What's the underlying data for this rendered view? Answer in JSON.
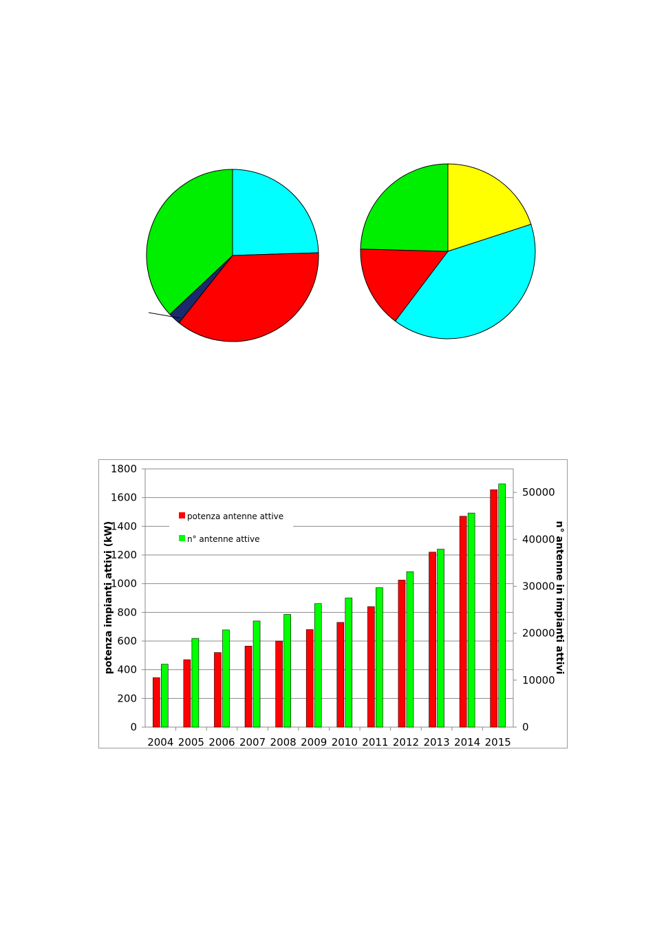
{
  "chart_data": [
    {
      "type": "pie",
      "title": "",
      "slices": [
        {
          "value": 24.5,
          "color": "#00ffff"
        },
        {
          "value": 36.2,
          "color": "#ff0000"
        },
        {
          "value": 2.3,
          "color": "#1a2a6e"
        },
        {
          "value": 37.0,
          "color": "#00ee00"
        }
      ]
    },
    {
      "type": "pie",
      "title": "",
      "slices": [
        {
          "value": 20.0,
          "color": "#ffff00"
        },
        {
          "value": 40.3,
          "color": "#00ffff"
        },
        {
          "value": 15.1,
          "color": "#ff0000"
        },
        {
          "value": 24.6,
          "color": "#00ee00"
        }
      ]
    },
    {
      "type": "bar",
      "title": "",
      "categories": [
        "2004",
        "2005",
        "2006",
        "2007",
        "2008",
        "2009",
        "2010",
        "2011",
        "2012",
        "2013",
        "2014",
        "2015"
      ],
      "series": [
        {
          "name": "potenza antenne attive",
          "axis": "left",
          "color": "#ff0000",
          "values": [
            345,
            470,
            520,
            565,
            600,
            680,
            730,
            840,
            1025,
            1220,
            1470,
            1655
          ]
        },
        {
          "name": "n° antenne attive",
          "axis": "right",
          "color": "#00ff00",
          "values": [
            13400,
            18900,
            20700,
            22600,
            24000,
            26300,
            27500,
            29700,
            33100,
            37900,
            45600,
            51800
          ]
        }
      ],
      "ylabel_left": "potenza impianti attivi (kW)",
      "ylabel_right": "n° antenne in impianti attivi",
      "ylim_left": [
        0,
        1800
      ],
      "ylim_right": [
        0,
        55000
      ],
      "yticks_left": [
        "0",
        "200",
        "400",
        "600",
        "800",
        "1000",
        "1200",
        "1400",
        "1600",
        "1800"
      ],
      "yticks_right": [
        "0",
        "10000",
        "20000",
        "30000",
        "40000",
        "50000"
      ],
      "grid": true,
      "legend_position": "top-left"
    }
  ]
}
